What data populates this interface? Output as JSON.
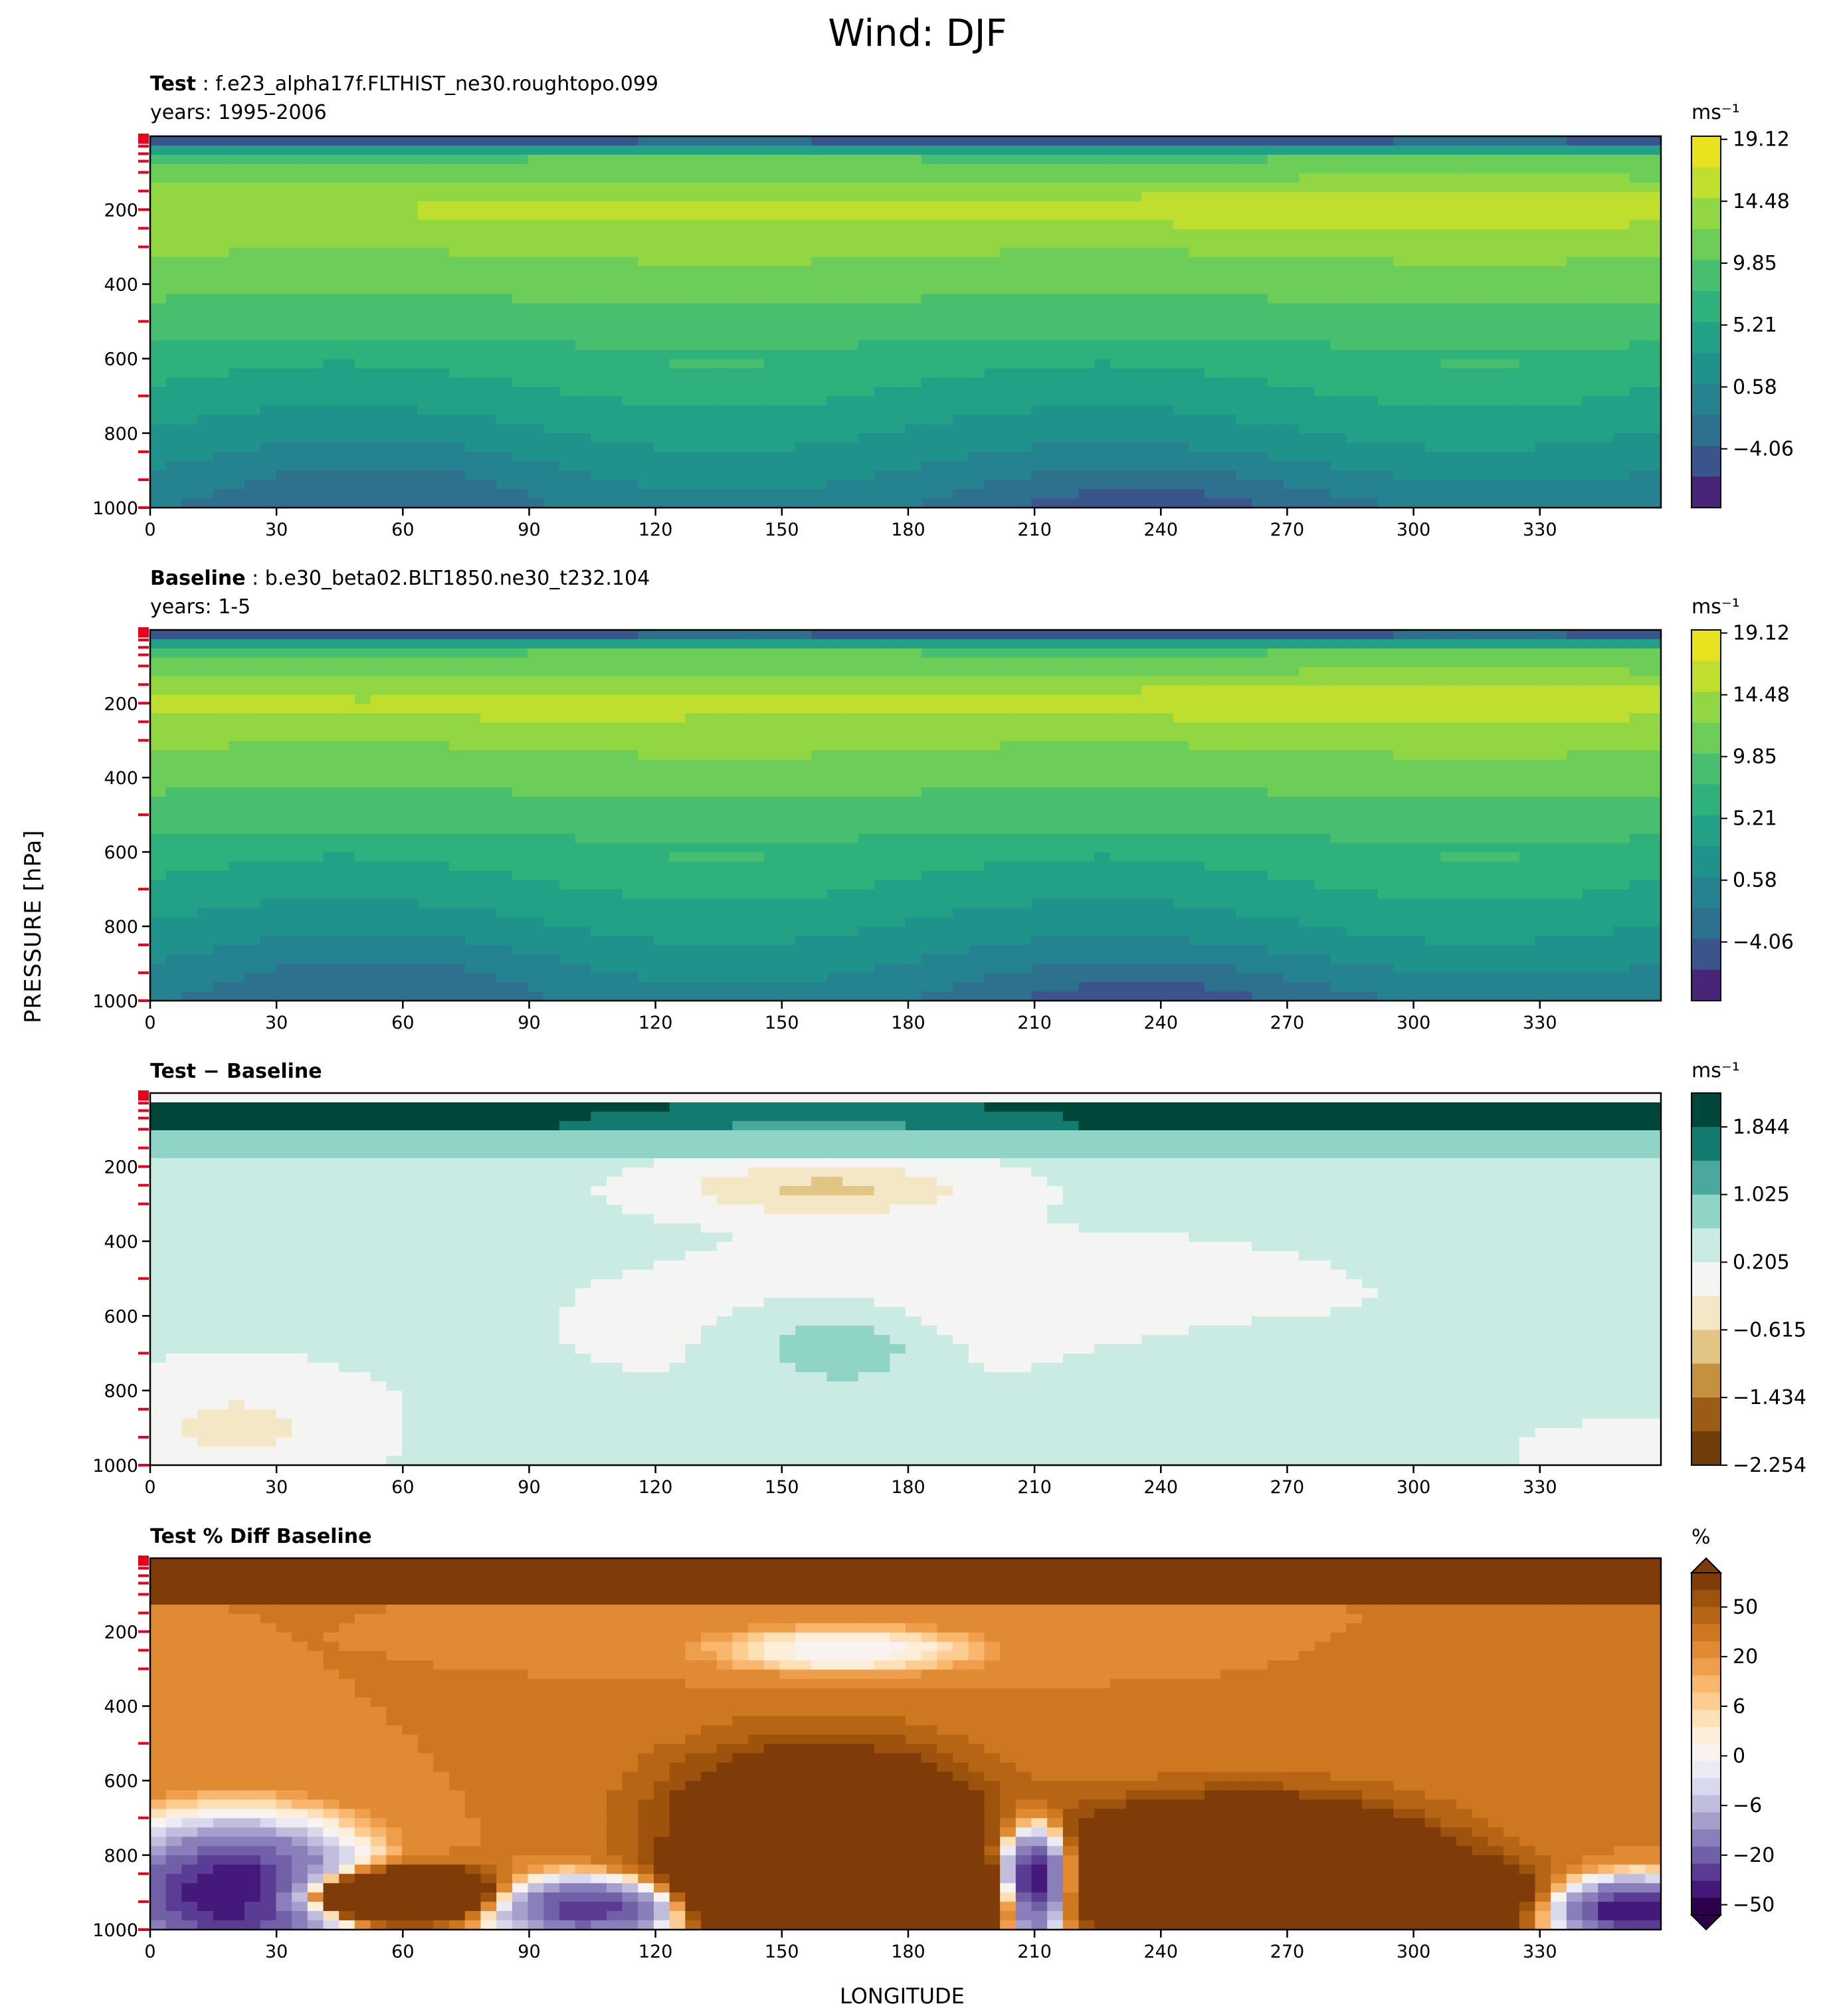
{
  "figure": {
    "title": "Wind: DJF",
    "ylabel": "PRESSURE [hPa]",
    "xlabel": "LONGITUDE"
  },
  "panels": [
    {
      "id": "test",
      "title_bold": "Test",
      "title_sep": " : ",
      "title_rest": "f.e23_alpha17f.FLTHIST_ne30.roughtopo.099",
      "years": "years: 1995-2006",
      "units": "ms⁻¹",
      "colorbar_ticks": [
        "19.12",
        "14.48",
        "9.85",
        "5.21",
        "0.58",
        "−4.06"
      ],
      "colorbar_colors": [
        "#e9e31f",
        "#bfde2d",
        "#91d743",
        "#6ccd59",
        "#47bf6e",
        "#2fb17c",
        "#22a187",
        "#1f928c",
        "#24838e",
        "#2d718e",
        "#3a558b",
        "#482576"
      ]
    },
    {
      "id": "baseline",
      "title_bold": "Baseline",
      "title_sep": " : ",
      "title_rest": "b.e30_beta02.BLT1850.ne30_t232.104",
      "years": "years: 1-5",
      "units": "ms⁻¹",
      "colorbar_ticks": [
        "19.12",
        "14.48",
        "9.85",
        "5.21",
        "0.58",
        "−4.06"
      ],
      "colorbar_colors": [
        "#e9e31f",
        "#bfde2d",
        "#91d743",
        "#6ccd59",
        "#47bf6e",
        "#2fb17c",
        "#22a187",
        "#1f928c",
        "#24838e",
        "#2d718e",
        "#3a558b",
        "#482576"
      ]
    },
    {
      "id": "diff",
      "title_bold": "Test − Baseline",
      "title_sep": "",
      "title_rest": "",
      "years": "",
      "units": "ms⁻¹",
      "colorbar_ticks": [
        "1.844",
        "1.025",
        "0.205",
        "−0.615",
        "−1.434",
        "−2.254"
      ],
      "colorbar_colors": [
        "#01463b",
        "#137a6f",
        "#4aa89d",
        "#8fd4c7",
        "#c9ebe4",
        "#f4f4f2",
        "#f4e7c6",
        "#e1c585",
        "#c4913e",
        "#9b5d16",
        "#6e3d0a"
      ]
    },
    {
      "id": "pctdiff",
      "title_bold": "Test % Diff Baseline",
      "title_sep": "",
      "title_rest": "",
      "years": "",
      "units": "%",
      "colorbar_ticks": [
        "50",
        "20",
        "6",
        "0",
        "−6",
        "−20",
        "−50"
      ],
      "colorbar_colors": [
        "#7f3b08",
        "#9e530c",
        "#b66514",
        "#cd781e",
        "#e08b33",
        "#ef9f4b",
        "#f8b76c",
        "#fdcc91",
        "#fde0b6",
        "#fdeed9",
        "#f8f3ef",
        "#eceaf2",
        "#d8d9ec",
        "#c0bedc",
        "#a59fcc",
        "#8a7fba",
        "#7160a8",
        "#5b3c94",
        "#45197c",
        "#2d004b"
      ]
    }
  ],
  "chart_data": [
    {
      "type": "heatmap",
      "name": "test",
      "x_ticks": [
        0,
        30,
        60,
        90,
        120,
        150,
        180,
        210,
        240,
        270,
        300,
        330
      ],
      "xlim": [
        0,
        358.75
      ],
      "y_ticks": [
        200,
        400,
        600,
        800,
        1000
      ],
      "ylim": [
        1000,
        3
      ],
      "pressure_levels_marked": [
        3,
        7,
        10,
        20,
        30,
        50,
        70,
        100,
        150,
        200,
        250,
        300,
        500,
        700,
        850,
        925,
        1000
      ],
      "contour_levels": [
        -6.38,
        -4.06,
        -1.74,
        0.58,
        2.9,
        5.21,
        7.53,
        9.85,
        12.17,
        14.48,
        16.8,
        19.12
      ]
    },
    {
      "type": "heatmap",
      "name": "baseline",
      "x_ticks": [
        0,
        30,
        60,
        90,
        120,
        150,
        180,
        210,
        240,
        270,
        300,
        330
      ],
      "xlim": [
        0,
        358.75
      ],
      "y_ticks": [
        200,
        400,
        600,
        800,
        1000
      ],
      "ylim": [
        1000,
        3
      ],
      "pressure_levels_marked": [
        3,
        7,
        10,
        20,
        30,
        50,
        70,
        100,
        150,
        200,
        250,
        300,
        500,
        700,
        850,
        925,
        1000
      ],
      "contour_levels": [
        -6.38,
        -4.06,
        -1.74,
        0.58,
        2.9,
        5.21,
        7.53,
        9.85,
        12.17,
        14.48,
        16.8,
        19.12
      ]
    },
    {
      "type": "heatmap",
      "name": "diff",
      "x_ticks": [
        0,
        30,
        60,
        90,
        120,
        150,
        180,
        210,
        240,
        270,
        300,
        330
      ],
      "xlim": [
        0,
        358.75
      ],
      "y_ticks": [
        200,
        400,
        600,
        800,
        1000
      ],
      "ylim": [
        1000,
        3
      ],
      "pressure_levels_marked": [
        3,
        7,
        10,
        20,
        30,
        50,
        70,
        100,
        150,
        200,
        250,
        300,
        500,
        700,
        850,
        925,
        1000
      ],
      "contour_levels": [
        -2.254,
        -1.844,
        -1.434,
        -1.025,
        -0.615,
        -0.205,
        0.205,
        0.615,
        1.025,
        1.434,
        1.844,
        2.254
      ]
    },
    {
      "type": "heatmap",
      "name": "pctdiff",
      "x_ticks": [
        0,
        30,
        60,
        90,
        120,
        150,
        180,
        210,
        240,
        270,
        300,
        330
      ],
      "xlim": [
        0,
        358.75
      ],
      "y_ticks": [
        200,
        400,
        600,
        800,
        1000
      ],
      "ylim": [
        1000,
        3
      ],
      "pressure_levels_marked": [
        3,
        7,
        10,
        20,
        30,
        50,
        70,
        100,
        150,
        200,
        250,
        300,
        500,
        700,
        850,
        925,
        1000
      ],
      "contour_levels": [
        -100,
        -75,
        -50,
        -40,
        -30,
        -20,
        -15,
        -10,
        -8,
        -6,
        -4,
        -2,
        -1,
        0,
        1,
        2,
        4,
        6,
        8,
        10,
        15,
        20,
        30,
        40,
        50,
        75,
        100
      ],
      "colorbar_extend": "both"
    }
  ]
}
